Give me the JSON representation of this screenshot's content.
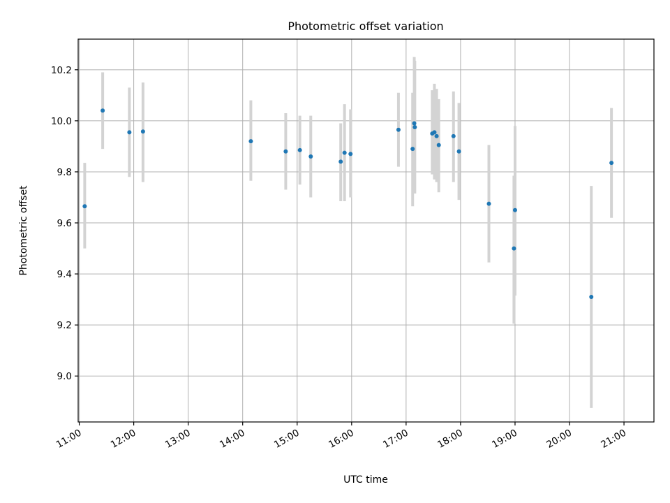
{
  "chart_data": {
    "type": "scatter",
    "title": "Photometric offset variation",
    "xlabel": "UTC time",
    "ylabel": "Photometric offset",
    "x_unit": "hours UTC",
    "xlim": [
      10.98,
      21.55
    ],
    "ylim": [
      8.82,
      10.32
    ],
    "x_ticks": [
      11,
      12,
      13,
      14,
      15,
      16,
      17,
      18,
      19,
      20,
      21
    ],
    "x_tick_labels": [
      "11:00",
      "12:00",
      "13:00",
      "14:00",
      "15:00",
      "16:00",
      "17:00",
      "18:00",
      "19:00",
      "20:00",
      "21:00"
    ],
    "y_ticks": [
      9.0,
      9.2,
      9.4,
      9.6,
      9.8,
      10.0,
      10.2
    ],
    "y_tick_labels": [
      "9.0",
      "9.2",
      "9.4",
      "9.6",
      "9.8",
      "10.0",
      "10.2"
    ],
    "grid": true,
    "point_color": "#1f77b4",
    "errorbar_color": "#d3d3d3",
    "points": [
      {
        "x": 11.1,
        "y": 9.665,
        "low": 9.5,
        "high": 9.835
      },
      {
        "x": 11.43,
        "y": 10.04,
        "low": 9.89,
        "high": 10.19
      },
      {
        "x": 11.92,
        "y": 9.955,
        "low": 9.78,
        "high": 10.13
      },
      {
        "x": 12.17,
        "y": 9.958,
        "low": 9.76,
        "high": 10.15
      },
      {
        "x": 14.15,
        "y": 9.92,
        "low": 9.765,
        "high": 10.08
      },
      {
        "x": 14.79,
        "y": 9.88,
        "low": 9.73,
        "high": 10.03
      },
      {
        "x": 15.05,
        "y": 9.885,
        "low": 9.75,
        "high": 10.02
      },
      {
        "x": 15.25,
        "y": 9.86,
        "low": 9.7,
        "high": 10.02
      },
      {
        "x": 15.8,
        "y": 9.84,
        "low": 9.685,
        "high": 9.99
      },
      {
        "x": 15.87,
        "y": 9.875,
        "low": 9.685,
        "high": 10.065
      },
      {
        "x": 15.98,
        "y": 9.87,
        "low": 9.7,
        "high": 10.045
      },
      {
        "x": 16.86,
        "y": 9.965,
        "low": 9.82,
        "high": 10.11
      },
      {
        "x": 17.12,
        "y": 9.89,
        "low": 9.665,
        "high": 10.11
      },
      {
        "x": 17.15,
        "y": 9.99,
        "low": 9.73,
        "high": 10.25
      },
      {
        "x": 17.16,
        "y": 9.975,
        "low": 9.715,
        "high": 10.235
      },
      {
        "x": 17.48,
        "y": 9.95,
        "low": 9.79,
        "high": 10.12
      },
      {
        "x": 17.52,
        "y": 9.955,
        "low": 9.77,
        "high": 10.145
      },
      {
        "x": 17.56,
        "y": 9.94,
        "low": 9.76,
        "high": 10.125
      },
      {
        "x": 17.6,
        "y": 9.905,
        "low": 9.72,
        "high": 10.085
      },
      {
        "x": 17.87,
        "y": 9.94,
        "low": 9.76,
        "high": 10.115
      },
      {
        "x": 17.97,
        "y": 9.88,
        "low": 9.69,
        "high": 10.07
      },
      {
        "x": 18.52,
        "y": 9.675,
        "low": 9.445,
        "high": 9.905
      },
      {
        "x": 18.98,
        "y": 9.5,
        "low": 9.205,
        "high": 9.785
      },
      {
        "x": 19.0,
        "y": 9.65,
        "low": 9.315,
        "high": 9.98
      },
      {
        "x": 20.4,
        "y": 9.31,
        "low": 8.875,
        "high": 9.745
      },
      {
        "x": 20.77,
        "y": 9.835,
        "low": 9.62,
        "high": 10.05
      }
    ]
  }
}
